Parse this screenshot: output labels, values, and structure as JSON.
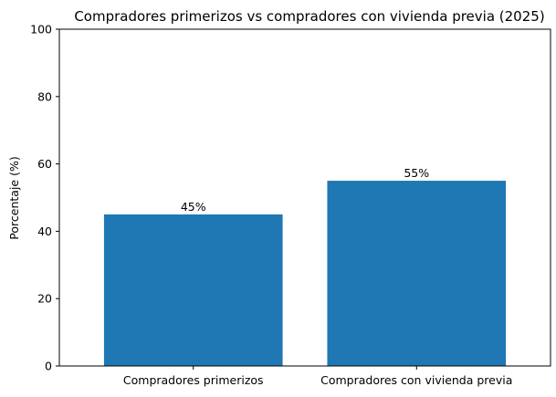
{
  "chart_data": {
    "type": "bar",
    "title": "Compradores primerizos vs compradores con vivienda previa (2025)",
    "xlabel": "",
    "ylabel": "Porcentaje (%)",
    "categories": [
      "Compradores primerizos",
      "Compradores con vivienda previa"
    ],
    "values": [
      45,
      55
    ],
    "data_labels": [
      "45%",
      "55%"
    ],
    "ylim": [
      0,
      100
    ],
    "yticks": [
      0,
      20,
      40,
      60,
      80,
      100
    ],
    "grid": false,
    "legend": "none",
    "bar_color": "#1f77b4"
  }
}
